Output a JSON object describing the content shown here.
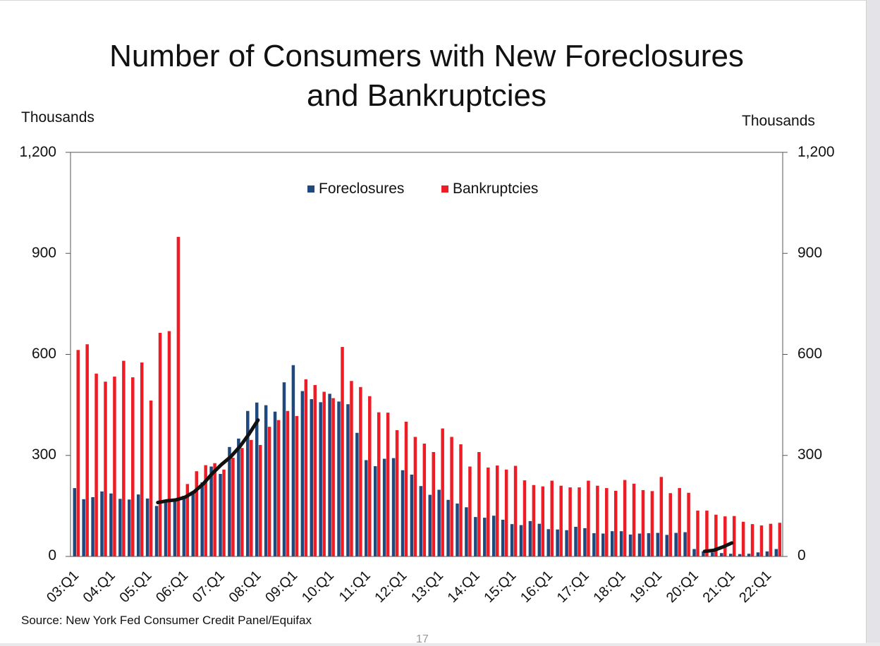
{
  "title_line1": "Number of Consumers with New Foreclosures",
  "title_line2": "and Bankruptcies",
  "left_axis_unit": "Thousands",
  "right_axis_unit": "Thousands",
  "source": "Source: New York Fed Consumer Credit Panel/Equifax",
  "page_number": "17",
  "colors": {
    "foreclosures": "#1f497d",
    "bankruptcies": "#ee1c25",
    "annotation": "#111111"
  },
  "legend": {
    "foreclosures": "Foreclosures",
    "bankruptcies": "Bankruptcies"
  },
  "y_ticks": [
    "1,200",
    "900",
    "600",
    "300",
    "0"
  ],
  "chart_data": {
    "type": "bar",
    "title": "Number of Consumers with New Foreclosures and Bankruptcies",
    "ylabel": "Thousands",
    "ylim": [
      0,
      1200
    ],
    "x_labels": [
      "03:Q1",
      "04:Q1",
      "05:Q1",
      "06:Q1",
      "07:Q1",
      "08:Q1",
      "09:Q1",
      "10:Q1",
      "11:Q1",
      "12:Q1",
      "13:Q1",
      "14:Q1",
      "15:Q1",
      "16:Q1",
      "17:Q1",
      "18:Q1",
      "19:Q1",
      "20:Q1",
      "21:Q1",
      "22:Q1"
    ],
    "quarters_start": "2003:Q1",
    "quarters_count": 78,
    "series": [
      {
        "name": "Foreclosures",
        "values": [
          203,
          170,
          176,
          193,
          187,
          171,
          169,
          184,
          172,
          150,
          160,
          170,
          180,
          189,
          220,
          267,
          245,
          325,
          350,
          432,
          457,
          449,
          430,
          517,
          568,
          491,
          467,
          458,
          483,
          460,
          452,
          367,
          286,
          268,
          290,
          292,
          256,
          243,
          209,
          183,
          198,
          168,
          157,
          146,
          117,
          115,
          121,
          109,
          96,
          93,
          105,
          97,
          81,
          80,
          78,
          88,
          84,
          69,
          68,
          75,
          75,
          65,
          68,
          69,
          70,
          64,
          70,
          72,
          22,
          15,
          12,
          10,
          8,
          7,
          8,
          12,
          15,
          22
        ]
      },
      {
        "name": "Bankruptcies",
        "values": [
          613,
          630,
          543,
          519,
          534,
          581,
          532,
          576,
          463,
          664,
          669,
          949,
          215,
          253,
          271,
          277,
          258,
          293,
          322,
          346,
          331,
          385,
          405,
          432,
          417,
          526,
          509,
          489,
          470,
          622,
          521,
          503,
          476,
          428,
          427,
          375,
          400,
          355,
          335,
          310,
          380,
          355,
          333,
          267,
          310,
          264,
          270,
          258,
          269,
          226,
          212,
          208,
          225,
          210,
          205,
          205,
          225,
          210,
          203,
          195,
          227,
          216,
          197,
          194,
          236,
          188,
          203,
          189,
          136,
          136,
          124,
          119,
          120,
          103,
          96,
          92,
          97,
          100
        ]
      }
    ],
    "annotations": [
      {
        "name": "trend-line-housing",
        "points": [
          [
            9,
            160
          ],
          [
            10,
            165
          ],
          [
            11,
            168
          ],
          [
            12,
            176
          ],
          [
            13,
            192
          ],
          [
            14,
            216
          ],
          [
            15,
            247
          ],
          [
            16,
            273
          ],
          [
            17,
            296
          ],
          [
            18,
            326
          ],
          [
            19,
            363
          ],
          [
            20,
            405
          ]
        ]
      },
      {
        "name": "trend-line-recent",
        "points": [
          [
            69,
            15
          ],
          [
            70,
            18
          ],
          [
            71,
            28
          ],
          [
            72,
            40
          ]
        ]
      }
    ]
  }
}
